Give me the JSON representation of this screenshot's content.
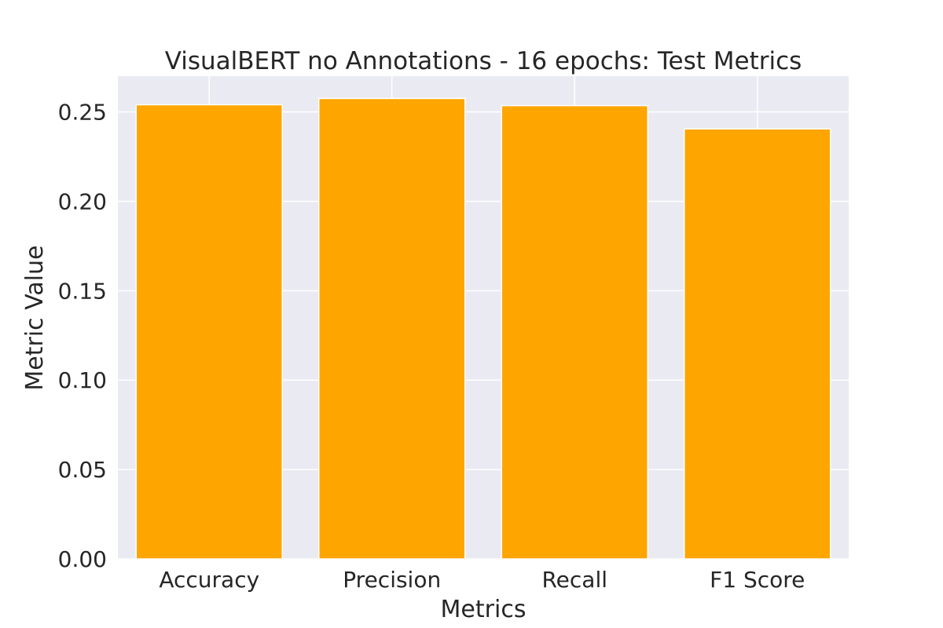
{
  "chart_data": {
    "type": "bar",
    "title": "VisualBERT no Annotations - 16 epochs: Test Metrics",
    "xlabel": "Metrics",
    "ylabel": "Metric Value",
    "categories": [
      "Accuracy",
      "Precision",
      "Recall",
      "F1 Score"
    ],
    "values": [
      0.254,
      0.2575,
      0.2535,
      0.2405
    ],
    "ylim": [
      0,
      0.27
    ],
    "yticks": [
      0.0,
      0.05,
      0.1,
      0.15,
      0.2,
      0.25
    ],
    "ytick_labels": [
      "0.00",
      "0.05",
      "0.10",
      "0.15",
      "0.20",
      "0.25"
    ],
    "grid": true,
    "bar_color": "#ffa500",
    "plot_background": "#eaeaf2",
    "grid_color": "#ffffff"
  }
}
